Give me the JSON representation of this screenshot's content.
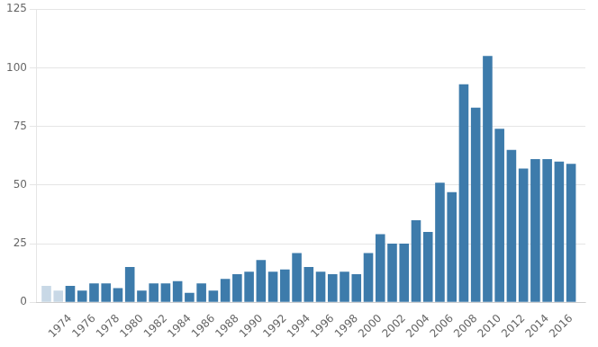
{
  "chart_data": {
    "type": "bar",
    "x": [
      1972,
      1973,
      1974,
      1975,
      1976,
      1977,
      1978,
      1979,
      1980,
      1981,
      1982,
      1983,
      1984,
      1985,
      1986,
      1987,
      1988,
      1989,
      1990,
      1991,
      1992,
      1993,
      1994,
      1995,
      1996,
      1997,
      1998,
      1999,
      2000,
      2001,
      2002,
      2003,
      2004,
      2005,
      2006,
      2007,
      2008,
      2009,
      2010,
      2011,
      2012,
      2013,
      2014,
      2015,
      2016
    ],
    "values": [
      7,
      5,
      7,
      5,
      8,
      8,
      6,
      15,
      5,
      8,
      8,
      9,
      4,
      8,
      5,
      10,
      12,
      13,
      18,
      13,
      14,
      21,
      15,
      13,
      12,
      13,
      12,
      21,
      29,
      25,
      25,
      35,
      30,
      51,
      47,
      93,
      83,
      105,
      74,
      65,
      57,
      61,
      61,
      60,
      59
    ],
    "colors": [
      "#c8d8e6",
      "#c8d8e6",
      "#3d7bab",
      "#3d7bab",
      "#3d7bab",
      "#3d7bab",
      "#3d7bab",
      "#3d7bab",
      "#3d7bab",
      "#3d7bab",
      "#3d7bab",
      "#3d7bab",
      "#3d7bab",
      "#3d7bab",
      "#3d7bab",
      "#3d7bab",
      "#3d7bab",
      "#3d7bab",
      "#3d7bab",
      "#3d7bab",
      "#3d7bab",
      "#3d7bab",
      "#3d7bab",
      "#3d7bab",
      "#3d7bab",
      "#3d7bab",
      "#3d7bab",
      "#3d7bab",
      "#3d7bab",
      "#3d7bab",
      "#3d7bab",
      "#3d7bab",
      "#3d7bab",
      "#3d7bab",
      "#3d7bab",
      "#3d7bab",
      "#3d7bab",
      "#3d7bab",
      "#3d7bab",
      "#3d7bab",
      "#3d7bab",
      "#3d7bab",
      "#3d7bab",
      "#3d7bab",
      "#3d7bab"
    ],
    "xlim": [
      1971.2,
      2017.2
    ],
    "xticks": [
      1974,
      1976,
      1978,
      1980,
      1982,
      1984,
      1986,
      1988,
      1990,
      1992,
      1994,
      1996,
      1998,
      2000,
      2002,
      2004,
      2006,
      2008,
      2010,
      2012,
      2014,
      2016
    ],
    "ylim": [
      0,
      125
    ],
    "yticks": [
      0,
      25,
      50,
      75,
      100,
      125
    ],
    "grid": true
  }
}
